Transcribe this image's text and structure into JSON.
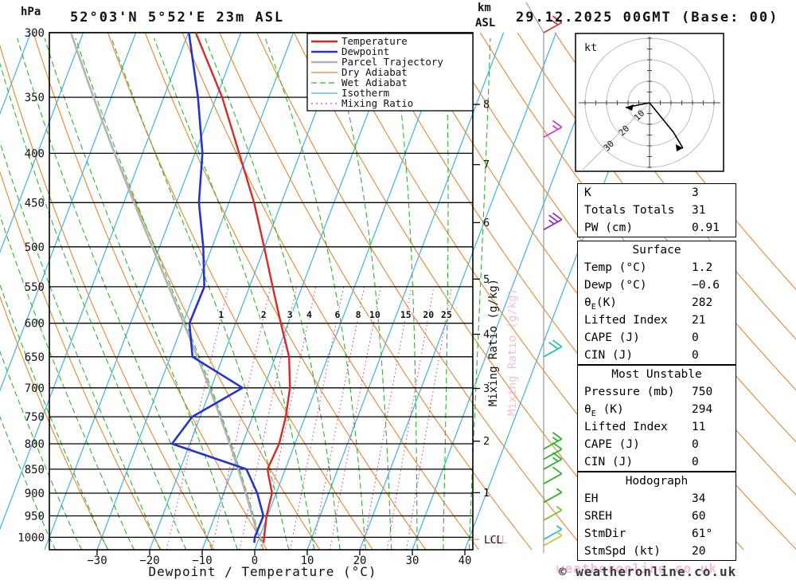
{
  "header": {
    "station_label": "52°03'N 5°52'E 23m ASL",
    "run_label": "29.12.2025 00GMT (Base: 00)"
  },
  "axes": {
    "pressure_unit": "hPa",
    "km_unit_line1": "km",
    "km_unit_line2": "ASL",
    "pressure_ticks": [
      300,
      350,
      400,
      450,
      500,
      550,
      600,
      650,
      700,
      750,
      800,
      850,
      900,
      950,
      1000
    ],
    "km_ticks": [
      {
        "km": "8",
        "p": 356
      },
      {
        "km": "7",
        "p": 411
      },
      {
        "km": "6",
        "p": 472
      },
      {
        "km": "5",
        "p": 540
      },
      {
        "km": "4",
        "p": 616
      },
      {
        "km": "3",
        "p": 701
      },
      {
        "km": "2",
        "p": 795
      },
      {
        "km": "1",
        "p": 899
      }
    ],
    "lcl_label": "LCL",
    "temp_ticks": [
      -30,
      -20,
      -10,
      0,
      10,
      20,
      30,
      40
    ],
    "x_axis_label": "Dewpoint / Temperature (°C)",
    "mixing_ratio_axis_label": "Mixing Ratio (g/kg)"
  },
  "legend": [
    {
      "label": "Temperature",
      "color": "#d42a2a",
      "dash": "none",
      "width": 2.4
    },
    {
      "label": "Dewpoint",
      "color": "#2433cf",
      "dash": "none",
      "width": 2.6
    },
    {
      "label": "Parcel Trajectory",
      "color": "#b3b3b3",
      "dash": "none",
      "width": 2.6
    },
    {
      "label": "Dry Adiabat",
      "color": "#e2882f",
      "dash": "none",
      "width": 1.2
    },
    {
      "label": "Wet Adiabat",
      "color": "#2db52d",
      "dash": "7 4",
      "width": 1.2
    },
    {
      "label": "Isotherm",
      "color": "#41b1e6",
      "dash": "none",
      "width": 1.2
    },
    {
      "label": "Mixing Ratio",
      "color": "#e6399b",
      "dash": "2 4",
      "width": 1.2
    }
  ],
  "hodograph": {
    "unit_label": "kt",
    "ring_labels": [
      "10",
      "20",
      "30"
    ]
  },
  "panels": [
    {
      "id": "indices",
      "title": null,
      "rows": [
        [
          "K",
          "3"
        ],
        [
          "Totals Totals",
          "31"
        ],
        [
          "PW (cm)",
          "0.91"
        ]
      ]
    },
    {
      "id": "surface",
      "title": "Surface",
      "rows": [
        [
          "Temp (°C)",
          "1.2"
        ],
        [
          "Dewp (°C)",
          "−0.6"
        ],
        [
          "θE(K)",
          "282"
        ],
        [
          "Lifted Index",
          "21"
        ],
        [
          "CAPE (J)",
          "0"
        ],
        [
          "CIN (J)",
          "0"
        ]
      ]
    },
    {
      "id": "most-unstable",
      "title": "Most Unstable",
      "rows": [
        [
          "Pressure (mb)",
          "750"
        ],
        [
          "θE (K)",
          "294"
        ],
        [
          "Lifted Index",
          "11"
        ],
        [
          "CAPE (J)",
          "0"
        ],
        [
          "CIN (J)",
          "0"
        ]
      ]
    },
    {
      "id": "hodograph",
      "title": "Hodograph",
      "rows": [
        [
          "EH",
          "34"
        ],
        [
          "SREH",
          "60"
        ],
        [
          "StmDir",
          "61°"
        ],
        [
          "StmSpd (kt)",
          "20"
        ]
      ]
    }
  ],
  "footer": {
    "copyright": "© weatheronline.co.uk",
    "watermark": "weatheronline.co.uk"
  },
  "chart_data": {
    "type": "skewt_log_p_sounding",
    "pressure_range_hpa": [
      300,
      1030
    ],
    "temp_axis_range_c": [
      -40,
      42
    ],
    "isotherm_step_c": 10,
    "dry_adiabat_theta_c": {
      "min": -30,
      "max": 150,
      "step": 10
    },
    "wet_adiabat_thetaw_c": {
      "min": -40,
      "max": 40,
      "step": 5
    },
    "mixing_ratio_lines_gkg": [
      1,
      2,
      3,
      4,
      6,
      8,
      10,
      15,
      20,
      25
    ],
    "sounding": {
      "pressure_hpa": [
        1013,
        1000,
        950,
        900,
        850,
        800,
        750,
        700,
        650,
        600,
        550,
        500,
        450,
        400,
        350,
        300
      ],
      "temperature_c": [
        1.2,
        0.9,
        -0.2,
        -0.8,
        -3.4,
        -3.0,
        -3.7,
        -5.0,
        -7.4,
        -11.4,
        -15.6,
        -20.1,
        -25.2,
        -31.6,
        -38.9,
        -48.6
      ],
      "dewpoint_c": [
        -0.6,
        -0.9,
        -0.8,
        -3.6,
        -7.4,
        -23.4,
        -21.5,
        -14.0,
        -25.8,
        -28.8,
        -28.6,
        -31.7,
        -35.7,
        -38.6,
        -43.5,
        -49.9
      ]
    },
    "parcel": {
      "surface_pressure_hpa": 1013,
      "surface_temp_c": 1.2,
      "surface_dewpoint_c": -0.6
    },
    "wind_barbs": [
      {
        "p": 300,
        "color": "#d23b3b",
        "feathers": [
          1,
          0.5
        ]
      },
      {
        "p": 385,
        "color": "#cf3ecf",
        "feathers": [
          1,
          0.5
        ]
      },
      {
        "p": 480,
        "color": "#8c35c8",
        "feathers": [
          1,
          1,
          0.5
        ]
      },
      {
        "p": 650,
        "color": "#2cc2a5",
        "feathers": [
          1,
          1
        ]
      },
      {
        "p": 810,
        "color": "#2db52d",
        "feathers": [
          1,
          0.5
        ]
      },
      {
        "p": 830,
        "color": "#2db52d",
        "feathers": [
          1
        ]
      },
      {
        "p": 850,
        "color": "#2db52d",
        "feathers": [
          1,
          0.5
        ]
      },
      {
        "p": 880,
        "color": "#2db52d",
        "feathers": [
          1
        ]
      },
      {
        "p": 920,
        "color": "#2db52d",
        "feathers": [
          0.5
        ]
      },
      {
        "p": 960,
        "color": "#7ac32e",
        "feathers": [
          0.5
        ]
      },
      {
        "p": 1005,
        "color": "#35bdd6",
        "feathers": [
          0.5
        ]
      },
      {
        "p": 1020,
        "color": "#c9c92e",
        "feathers": [
          0.5
        ]
      }
    ]
  }
}
